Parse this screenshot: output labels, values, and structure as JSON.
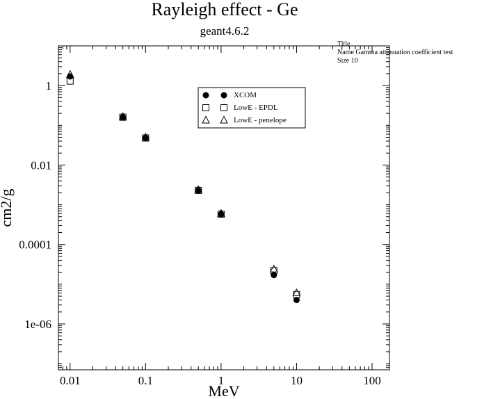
{
  "chart_data": {
    "type": "scatter",
    "title": "Rayleigh effect - Ge",
    "subtitle": "geant4.6.2",
    "xlabel": "MeV",
    "ylabel": "cm2/g",
    "xscale": "log",
    "yscale": "log",
    "xlim": [
      0.007,
      170
    ],
    "ylim": [
      7e-08,
      10
    ],
    "xticks": [
      0.01,
      0.1,
      1,
      10,
      100
    ],
    "xtick_labels": [
      "0.01",
      "0.1",
      "1",
      "10",
      "100"
    ],
    "yticks": [
      1e-06,
      0.0001,
      0.01,
      1
    ],
    "ytick_labels": [
      "1e-06",
      "0.0001",
      "0.01",
      "1"
    ],
    "legend_position": "upper-center",
    "series": [
      {
        "name": "XCOM",
        "marker": "filled-circle",
        "x": [
          0.01,
          0.05,
          0.1,
          0.5,
          1,
          5,
          10
        ],
        "y": [
          1.7,
          0.16,
          0.048,
          0.0023,
          0.00058,
          1.7e-05,
          4e-06
        ]
      },
      {
        "name": "LowE - EPDL",
        "marker": "open-square",
        "x": [
          0.01,
          0.05,
          0.1,
          0.5,
          1,
          5,
          10
        ],
        "y": [
          1.3,
          0.16,
          0.048,
          0.0023,
          0.00058,
          2.2e-05,
          5.5e-06
        ]
      },
      {
        "name": "LowE - penelope",
        "marker": "open-triangle",
        "x": [
          0.01,
          0.05,
          0.1,
          0.5,
          1,
          5,
          10
        ],
        "y": [
          1.9,
          0.165,
          0.05,
          0.0024,
          0.0006,
          2.4e-05,
          6e-06
        ]
      }
    ]
  },
  "note": {
    "line1": "Title",
    "line2": "Name  Gamma attenuation coefficient test",
    "line3": "Size  10"
  }
}
